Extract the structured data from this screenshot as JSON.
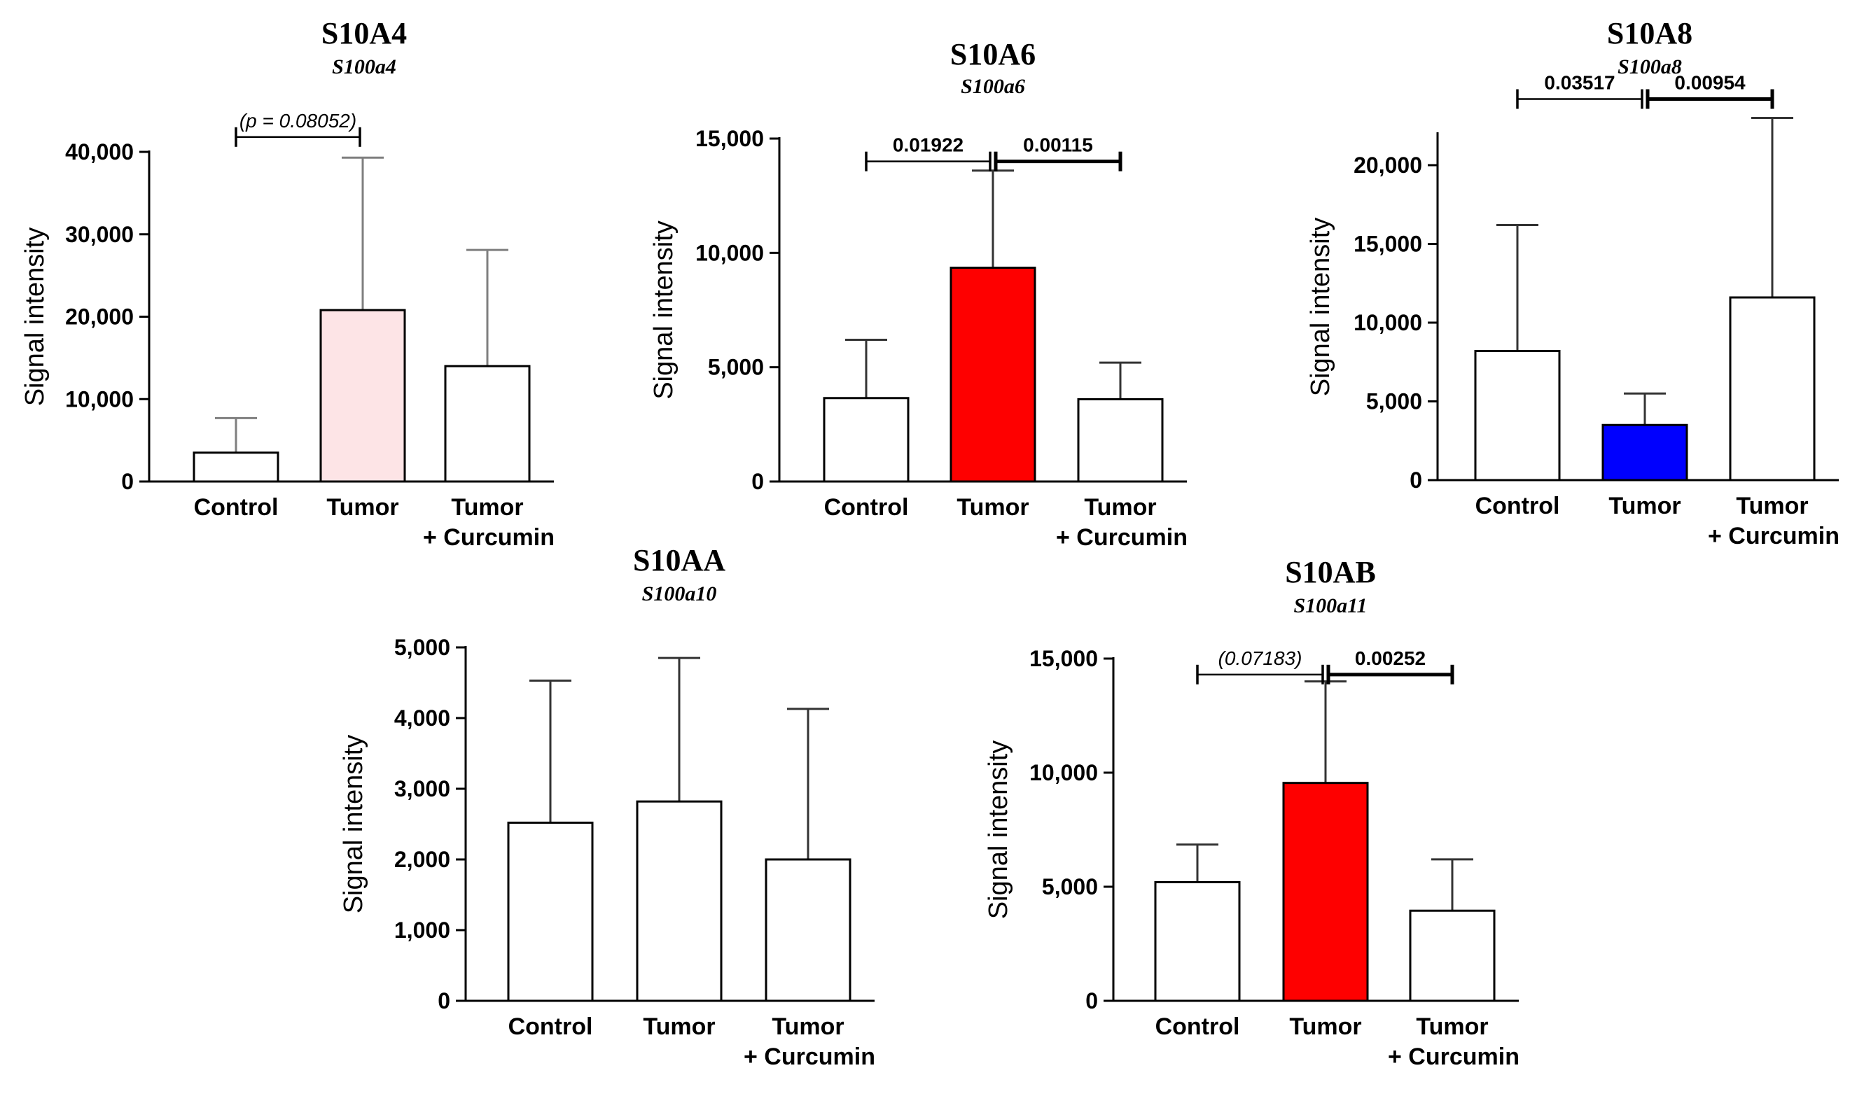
{
  "chart_data": [
    {
      "type": "bar",
      "title": "S10A4",
      "subtitle": "S100a4",
      "ylabel": "Signal intensity",
      "ylim": [
        0,
        40000
      ],
      "yticks": [
        0,
        10000,
        20000,
        30000,
        40000
      ],
      "ytick_labels": [
        "0",
        "10,000",
        "20,000",
        "30,000",
        "40,000"
      ],
      "categories": [
        [
          "Control"
        ],
        [
          "Tumor"
        ],
        [
          "Tumor",
          "+ Curcumin"
        ]
      ],
      "values": [
        3500,
        20800,
        14000
      ],
      "errors": [
        4200,
        18500,
        14100
      ],
      "colors": [
        "#ffffff",
        "#fde4e6",
        "#ffffff"
      ],
      "error_color": "#7f7f7f",
      "significance": [
        {
          "from": 0,
          "to": 1,
          "label": "(p = 0.08052)",
          "y": 41800,
          "style": "ns"
        }
      ]
    },
    {
      "type": "bar",
      "title": "S10A6",
      "subtitle": "S100a6",
      "ylabel": "Signal intensity",
      "ylim": [
        0,
        15000
      ],
      "yticks": [
        0,
        5000,
        10000,
        15000
      ],
      "ytick_labels": [
        "0",
        "5,000",
        "10,000",
        "15,000"
      ],
      "categories": [
        [
          "Control"
        ],
        [
          "Tumor"
        ],
        [
          "Tumor",
          "+ Curcumin"
        ]
      ],
      "values": [
        3650,
        9350,
        3600
      ],
      "errors": [
        2550,
        4250,
        1600
      ],
      "colors": [
        "#ffffff",
        "#fe0000",
        "#ffffff"
      ],
      "error_color": "#333333",
      "significance": [
        {
          "from": 0,
          "to": 1,
          "label": "0.01922",
          "y": 14000,
          "style": "sig"
        },
        {
          "from": 1,
          "to": 2,
          "label": "0.00115",
          "y": 14000,
          "style": "sig-bold"
        }
      ]
    },
    {
      "type": "bar",
      "title": "S10A8",
      "subtitle": "S100a8",
      "ylabel": "Signal intensity",
      "ylim": [
        0,
        22000
      ],
      "yticks": [
        0,
        5000,
        10000,
        15000,
        20000
      ],
      "ytick_labels": [
        "0",
        "5,000",
        "10,000",
        "15,000",
        "20,000"
      ],
      "categories": [
        [
          "Control"
        ],
        [
          "Tumor"
        ],
        [
          "Tumor",
          "+ Curcumin"
        ]
      ],
      "values": [
        8200,
        3500,
        11600
      ],
      "errors": [
        8000,
        2000,
        11400
      ],
      "colors": [
        "#ffffff",
        "#0000fe",
        "#ffffff"
      ],
      "error_color": "#333333",
      "significance": [
        {
          "from": 0,
          "to": 1,
          "label": "0.03517",
          "y": 24200,
          "style": "sig"
        },
        {
          "from": 1,
          "to": 2,
          "label": "0.00954",
          "y": 24200,
          "style": "sig-bold"
        }
      ]
    },
    {
      "type": "bar",
      "title": "S10AA",
      "subtitle": "S100a10",
      "ylabel": "Signal intensity",
      "ylim": [
        0,
        5000
      ],
      "yticks": [
        0,
        1000,
        2000,
        3000,
        4000,
        5000
      ],
      "ytick_labels": [
        "0",
        "1,000",
        "2,000",
        "3,000",
        "4,000",
        "5,000"
      ],
      "categories": [
        [
          "Control"
        ],
        [
          "Tumor"
        ],
        [
          "Tumor",
          "+ Curcumin"
        ]
      ],
      "values": [
        2520,
        2820,
        2000
      ],
      "errors": [
        2010,
        2030,
        2130
      ],
      "colors": [
        "#ffffff",
        "#ffffff",
        "#ffffff"
      ],
      "error_color": "#333333",
      "significance": []
    },
    {
      "type": "bar",
      "title": "S10AB",
      "subtitle": "S100a11",
      "ylabel": "Signal intensity",
      "ylim": [
        0,
        15000
      ],
      "yticks": [
        0,
        5000,
        10000,
        15000
      ],
      "ytick_labels": [
        "0",
        "5,000",
        "10,000",
        "15,000"
      ],
      "categories": [
        [
          "Control"
        ],
        [
          "Tumor"
        ],
        [
          "Tumor",
          "+ Curcumin"
        ]
      ],
      "values": [
        5200,
        9550,
        3950
      ],
      "errors": [
        1650,
        4450,
        2250
      ],
      "colors": [
        "#ffffff",
        "#fe0000",
        "#ffffff"
      ],
      "error_color": "#333333",
      "significance": [
        {
          "from": 0,
          "to": 1,
          "label": "(0.07183)",
          "y": 14300,
          "style": "ns"
        },
        {
          "from": 1,
          "to": 2,
          "label": "0.00252",
          "y": 14300,
          "style": "sig-bold"
        }
      ]
    }
  ]
}
